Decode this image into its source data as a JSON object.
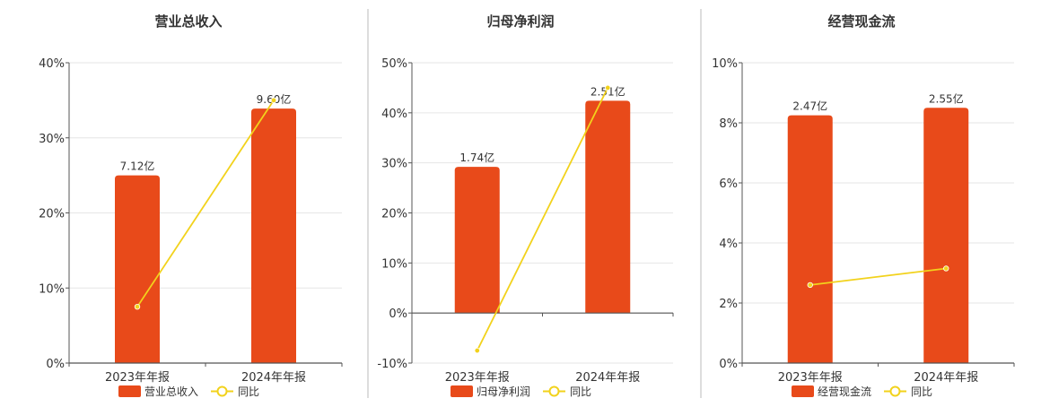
{
  "colors": {
    "bar": "#E84A1A",
    "line": "#F2D21C",
    "axis": "#555555",
    "grid": "#E6E6E6",
    "divider": "#BBBBBB",
    "text": "#333333"
  },
  "legend_line_label": "同比",
  "chart_data": [
    {
      "type": "bar",
      "title": "营业总收入",
      "categories": [
        "2023年年报",
        "2024年年报"
      ],
      "ylim": [
        0,
        40
      ],
      "yticks": [
        "0%",
        "10%",
        "20%",
        "30%",
        "40%"
      ],
      "bar_values": [
        25.0,
        33.9
      ],
      "bar_labels": [
        "7.12亿",
        "9.60亿"
      ],
      "line_values": [
        7.5,
        35.0
      ],
      "legend": [
        "营业总收入",
        "同比"
      ],
      "legend_position": "bottom"
    },
    {
      "type": "bar",
      "title": "归母净利润",
      "categories": [
        "2023年年报",
        "2024年年报"
      ],
      "ylim": [
        -10,
        50
      ],
      "yticks": [
        "-10%",
        "0%",
        "10%",
        "20%",
        "30%",
        "40%",
        "50%"
      ],
      "bar_values": [
        29.2,
        42.4
      ],
      "bar_labels": [
        "1.74亿",
        "2.51亿"
      ],
      "line_values": [
        -7.5,
        45.0
      ],
      "legend": [
        "归母净利润",
        "同比"
      ],
      "legend_position": "bottom"
    },
    {
      "type": "bar",
      "title": "经营现金流",
      "categories": [
        "2023年年报",
        "2024年年报"
      ],
      "ylim": [
        0,
        10
      ],
      "yticks": [
        "0%",
        "2%",
        "4%",
        "6%",
        "8%",
        "10%"
      ],
      "bar_values": [
        8.25,
        8.5
      ],
      "bar_labels": [
        "2.47亿",
        "2.55亿"
      ],
      "line_values": [
        2.6,
        3.15
      ],
      "legend": [
        "经营现金流",
        "同比"
      ],
      "legend_position": "bottom"
    }
  ]
}
